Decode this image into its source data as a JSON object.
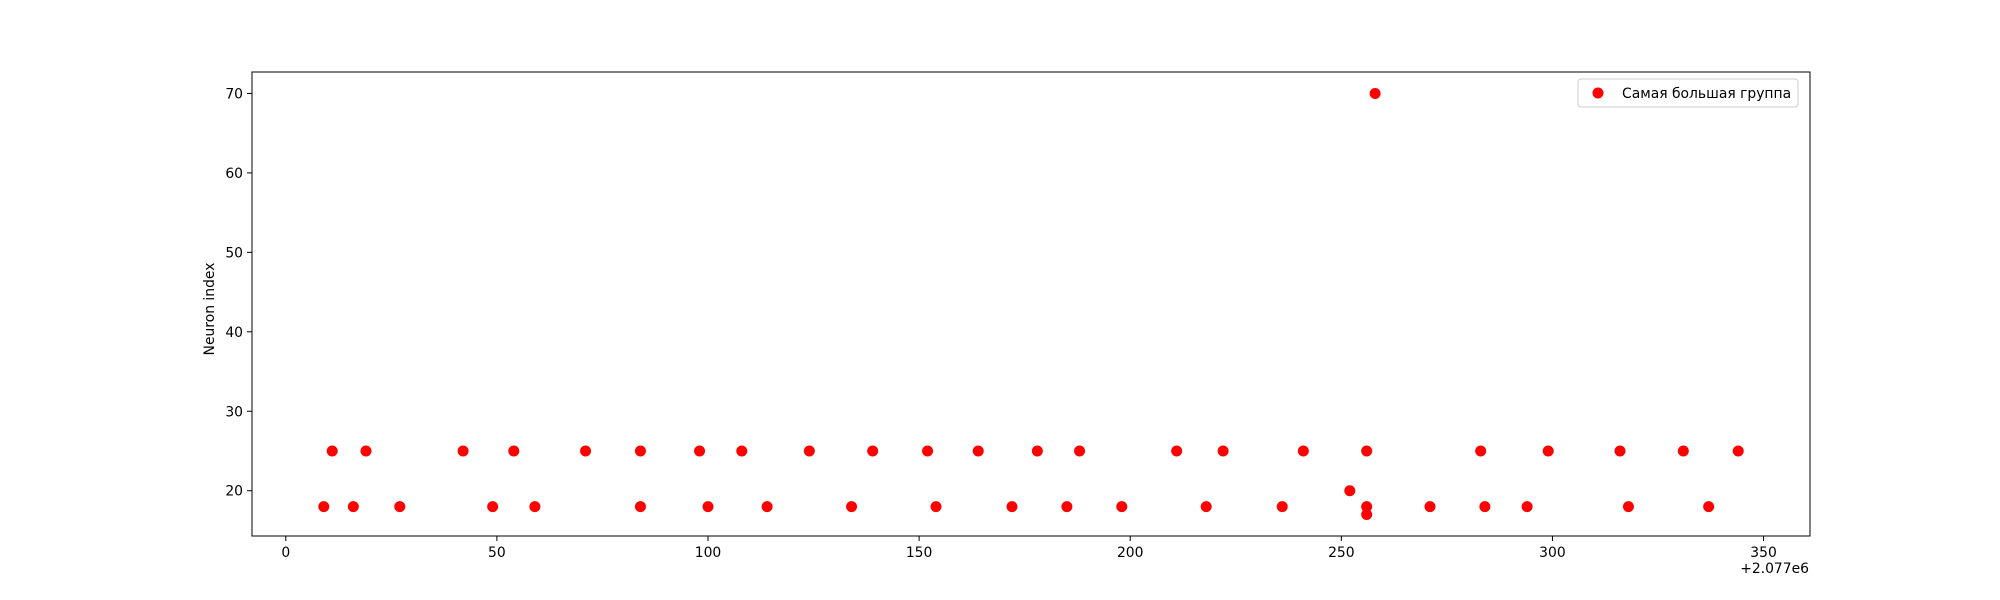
{
  "chart_data": {
    "type": "scatter",
    "title": "",
    "xlabel": "",
    "ylabel": "Neuron index",
    "x_offset_label": "+2.077e6",
    "xlim": [
      -8,
      361
    ],
    "ylim": [
      14.3,
      72.7
    ],
    "x_ticks": [
      0,
      50,
      100,
      150,
      200,
      250,
      300,
      350
    ],
    "y_ticks": [
      20,
      30,
      40,
      50,
      60,
      70
    ],
    "grid": false,
    "legend_position": "top-right",
    "series": [
      {
        "name": "Самая большая группа",
        "color": "#ff0000",
        "points": [
          {
            "x": 9,
            "y": 18
          },
          {
            "x": 11,
            "y": 25
          },
          {
            "x": 16,
            "y": 18
          },
          {
            "x": 19,
            "y": 25
          },
          {
            "x": 27,
            "y": 18
          },
          {
            "x": 42,
            "y": 25
          },
          {
            "x": 49,
            "y": 18
          },
          {
            "x": 54,
            "y": 25
          },
          {
            "x": 59,
            "y": 18
          },
          {
            "x": 71,
            "y": 25
          },
          {
            "x": 84,
            "y": 18
          },
          {
            "x": 84,
            "y": 25
          },
          {
            "x": 98,
            "y": 25
          },
          {
            "x": 100,
            "y": 18
          },
          {
            "x": 108,
            "y": 25
          },
          {
            "x": 114,
            "y": 18
          },
          {
            "x": 124,
            "y": 25
          },
          {
            "x": 134,
            "y": 18
          },
          {
            "x": 139,
            "y": 25
          },
          {
            "x": 152,
            "y": 25
          },
          {
            "x": 154,
            "y": 18
          },
          {
            "x": 164,
            "y": 25
          },
          {
            "x": 172,
            "y": 18
          },
          {
            "x": 178,
            "y": 25
          },
          {
            "x": 185,
            "y": 18
          },
          {
            "x": 188,
            "y": 25
          },
          {
            "x": 198,
            "y": 18
          },
          {
            "x": 211,
            "y": 25
          },
          {
            "x": 218,
            "y": 18
          },
          {
            "x": 222,
            "y": 25
          },
          {
            "x": 236,
            "y": 18
          },
          {
            "x": 241,
            "y": 25
          },
          {
            "x": 252,
            "y": 20
          },
          {
            "x": 256,
            "y": 17
          },
          {
            "x": 256,
            "y": 18
          },
          {
            "x": 256,
            "y": 25
          },
          {
            "x": 258,
            "y": 70
          },
          {
            "x": 271,
            "y": 18
          },
          {
            "x": 283,
            "y": 25
          },
          {
            "x": 284,
            "y": 18
          },
          {
            "x": 294,
            "y": 18
          },
          {
            "x": 299,
            "y": 25
          },
          {
            "x": 316,
            "y": 25
          },
          {
            "x": 318,
            "y": 18
          },
          {
            "x": 331,
            "y": 25
          },
          {
            "x": 337,
            "y": 18
          },
          {
            "x": 344,
            "y": 25
          }
        ]
      }
    ]
  }
}
